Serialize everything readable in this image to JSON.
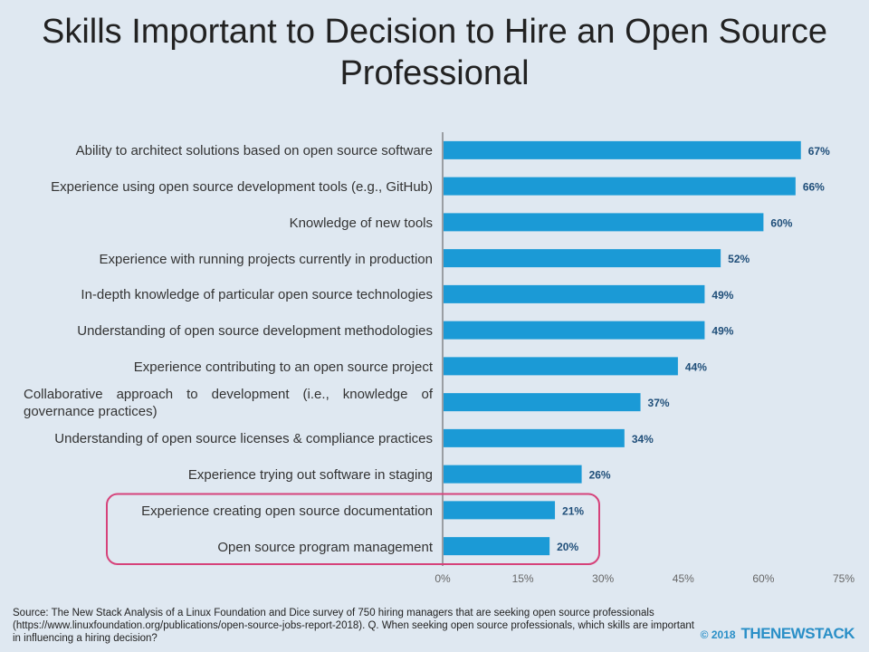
{
  "title": "Skills Important to Decision to Hire an Open Source Professional",
  "chart_data": {
    "type": "bar",
    "orientation": "horizontal",
    "categories": [
      "Ability to architect solutions based on open source software",
      "Experience using open source development tools (e.g., GitHub)",
      "Knowledge of new tools",
      "Experience with running projects currently in production",
      "In-depth knowledge of particular open source technologies",
      "Understanding of open source development methodologies",
      "Experience contributing to an open source project",
      "Collaborative approach to development (i.e., knowledge of governance practices)",
      "Understanding of open source licenses & compliance practices",
      "Experience trying out software in staging",
      "Experience creating open source documentation",
      "Open source program management"
    ],
    "values": [
      67,
      66,
      60,
      52,
      49,
      49,
      44,
      37,
      34,
      26,
      21,
      20
    ],
    "data_labels": [
      "67%",
      "66%",
      "60%",
      "52%",
      "49%",
      "49%",
      "44%",
      "37%",
      "34%",
      "26%",
      "21%",
      "20%"
    ],
    "xlim": [
      0,
      75
    ],
    "x_ticks": [
      "0%",
      "15%",
      "30%",
      "45%",
      "60%",
      "75%"
    ],
    "highlighted_categories": [
      10,
      11
    ],
    "grid": false,
    "colors": {
      "bar": "#1b9ad6",
      "label": "#1f4e79",
      "highlight": "#d6427a",
      "background": "#dfe8f1"
    }
  },
  "footer": {
    "source": "Source: The New Stack Analysis of a Linux Foundation and Dice survey of 750 hiring managers that are seeking open source professionals (https://www.linuxfoundation.org/publications/open-source-jobs-report-2018). Q. When seeking open source professionals, which skills are important in influencing a hiring decision?",
    "copyright": "© 2018",
    "brand": "THENEWSTACK"
  }
}
